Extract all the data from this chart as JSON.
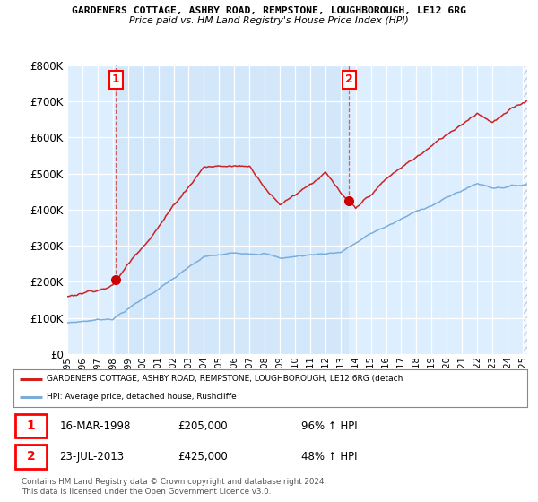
{
  "title1": "GARDENERS COTTAGE, ASHBY ROAD, REMPSTONE, LOUGHBOROUGH, LE12 6RG",
  "title2": "Price paid vs. HM Land Registry's House Price Index (HPI)",
  "legend_line1": "GARDENERS COTTAGE, ASHBY ROAD, REMPSTONE, LOUGHBOROUGH, LE12 6RG (detach",
  "legend_line2": "HPI: Average price, detached house, Rushcliffe",
  "sale1_date": "16-MAR-1998",
  "sale1_price": "£205,000",
  "sale1_hpi": "96% ↑ HPI",
  "sale2_date": "23-JUL-2013",
  "sale2_price": "£425,000",
  "sale2_hpi": "48% ↑ HPI",
  "footer": "Contains HM Land Registry data © Crown copyright and database right 2024.\nThis data is licensed under the Open Government Licence v3.0.",
  "hpi_color": "#7aaddc",
  "price_color": "#cc2222",
  "marker_color": "#cc0000",
  "background_chart": "#ddeeff",
  "background_fig": "#ffffff",
  "grid_color": "#ffffff",
  "ylim": [
    0,
    800000
  ],
  "yticks": [
    0,
    100000,
    200000,
    300000,
    400000,
    500000,
    600000,
    700000,
    800000
  ],
  "ytick_labels": [
    "£0",
    "£100K",
    "£200K",
    "£300K",
    "£400K",
    "£500K",
    "£600K",
    "£700K",
    "£800K"
  ],
  "sale1_year": 1998.21,
  "sale1_value": 205000,
  "sale2_year": 2013.55,
  "sale2_value": 425000,
  "xmin": 1995.0,
  "xmax": 2025.3
}
